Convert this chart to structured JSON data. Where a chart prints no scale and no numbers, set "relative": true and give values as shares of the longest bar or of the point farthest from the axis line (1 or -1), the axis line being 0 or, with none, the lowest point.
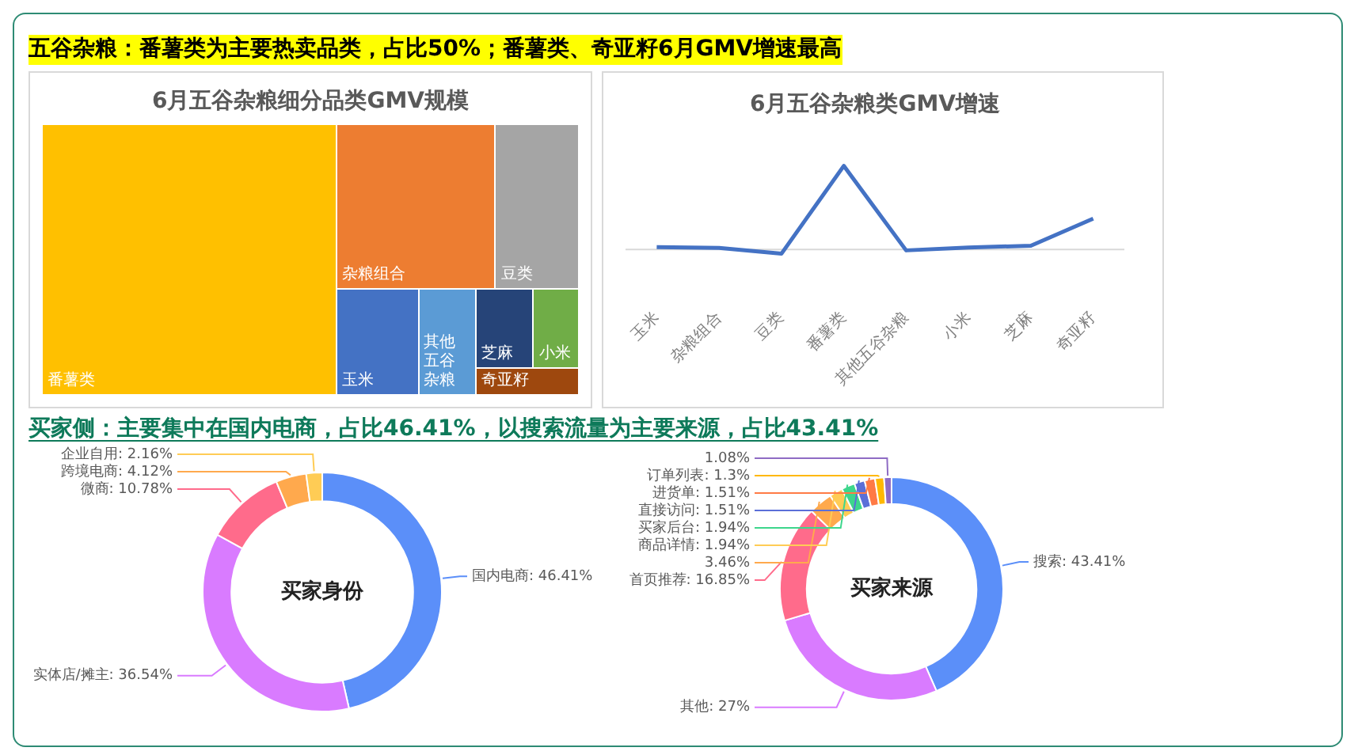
{
  "chart_data": [
    {
      "type": "other",
      "title": "6月五谷杂粮细分品类GMV规模",
      "annotations": [
        "五谷杂粮：番薯类为主要热卖品类，占比50%；番薯类、奇亚籽6月GMV增速最高"
      ],
      "categories": [
        "番薯类",
        "杂粮组合",
        "豆类",
        "玉米",
        "其他五谷杂粮",
        "芝麻",
        "小米",
        "奇亚籽"
      ],
      "colors": [
        "#ffc000",
        "#ed7d31",
        "#a5a5a5",
        "#4472c4",
        "#5b9bd5",
        "#264478",
        "#70ad47",
        "#9e480e"
      ]
    },
    {
      "type": "line",
      "title": "6月五谷杂粮类GMV增速",
      "categories": [
        "玉米",
        "杂粮组合",
        "豆类",
        "番薯类",
        "其他五谷杂粮",
        "小米",
        "芝麻",
        "奇亚籽"
      ],
      "values": [
        0.03,
        0.02,
        -0.05,
        1,
        -0.01,
        0.025,
        0.045,
        0.37
      ],
      "color": "#4472c4",
      "relative": true,
      "marker": "none"
    },
    {
      "type": "donut",
      "title": "买家身份",
      "annotations": [
        "买家侧：主要集中在国内电商，占比46.41%，以搜索流量为主要来源，占比43.41%"
      ],
      "categories": [
        "国内电商",
        "实体店/摊主",
        "微商",
        "跨境电商",
        "企业自用"
      ],
      "values": [
        46.41,
        36.54,
        10.78,
        4.12,
        2.16
      ],
      "value_labels": [
        "46.41%",
        "36.54%",
        "10.78%",
        "4.12%",
        "2.16%"
      ],
      "colors": [
        "#5b8ff9",
        "#d97bff",
        "#ff6b8b",
        "#ffa94d",
        "#ffcc55"
      ]
    },
    {
      "type": "donut",
      "title": "买家来源",
      "categories": [
        "搜索",
        "其他",
        "首页推荐",
        null,
        "商品详情",
        "买家后台",
        "直接访问",
        "进货单",
        "订单列表",
        null
      ],
      "values": [
        43.41,
        27,
        16.85,
        3.46,
        1.94,
        1.94,
        1.51,
        1.51,
        1.3,
        1.08
      ],
      "value_labels": [
        "43.41%",
        "27%",
        "16.85%",
        "3.46%",
        "1.94%",
        "1.94%",
        "1.51%",
        "1.51%",
        "1.3%",
        "1.08%"
      ],
      "colors": [
        "#5b8ff9",
        "#d97bff",
        "#ff6b8b",
        "#ffa94d",
        "#ffcc55",
        "#3dd68c",
        "#5b6fd8",
        "#ff7a45",
        "#ffb800",
        "#8e6bc4"
      ]
    }
  ]
}
